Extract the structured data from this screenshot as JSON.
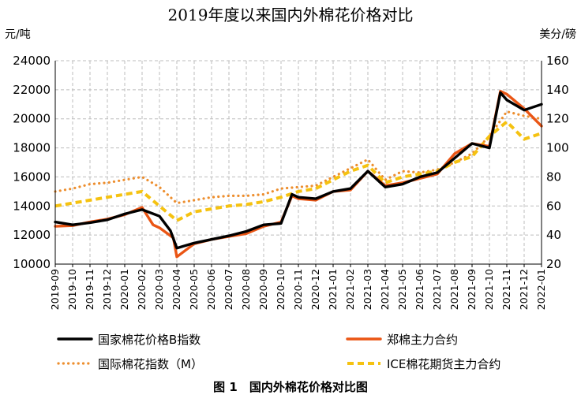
{
  "chart_data": {
    "type": "line",
    "title": "2019年度以来国内外棉花价格对比",
    "caption": "图 1　国内外棉花价格对比图",
    "ylabel_left": "元/吨",
    "ylabel_right": "美分/磅",
    "ylim_left": [
      10000,
      24000
    ],
    "ylim_right": [
      20,
      160
    ],
    "yticks_left": [
      "24000",
      "22000",
      "20000",
      "18000",
      "16000",
      "14000",
      "12000",
      "10000"
    ],
    "yticks_right": [
      "160",
      "140",
      "120",
      "100",
      "80",
      "60",
      "40",
      "20"
    ],
    "x_ticks": [
      "2019-09",
      "2019-10",
      "2019-11",
      "2019-12",
      "2020-01",
      "2020-02",
      "2020-03",
      "2020-04",
      "2020-05",
      "2020-06",
      "2020-07",
      "2020-08",
      "2020-09",
      "2020-10",
      "2020-11",
      "2020-12",
      "2021-01",
      "2021-02",
      "2021-03",
      "2021-04",
      "2021-05",
      "2021-06",
      "2021-07",
      "2021-08",
      "2021-09",
      "2021-10",
      "2021-11",
      "2021-12",
      "2022-01"
    ],
    "grid": true,
    "legend_position": "bottom",
    "colors": {
      "cc_index": "#000000",
      "zce_main": "#ea5514",
      "intl_index": "#ed8e2e",
      "ice_main": "#f5c211",
      "grid": "#bdbdbd"
    },
    "series": [
      {
        "name": "国家棉花价格B指数",
        "axis": "left",
        "style": "solid-thick",
        "x": [
          "2019-09",
          "2019-10",
          "2019-11",
          "2019-12",
          "2020-01",
          "2020-02",
          "2020-03",
          "2020-03-20",
          "2020-04",
          "2020-05",
          "2020-06",
          "2020-07",
          "2020-08",
          "2020-09",
          "2020-10",
          "2020-10-20",
          "2020-11",
          "2020-12",
          "2021-01",
          "2021-02",
          "2021-03",
          "2021-04",
          "2021-05",
          "2021-06",
          "2021-07",
          "2021-08",
          "2021-09",
          "2021-10",
          "2021-10-20",
          "2021-11",
          "2021-12",
          "2021-12-31"
        ],
        "values": [
          12900,
          12700,
          12850,
          13050,
          13450,
          13750,
          13300,
          12300,
          11100,
          11450,
          11700,
          11950,
          12250,
          12700,
          12800,
          14800,
          14600,
          14500,
          15000,
          15200,
          16400,
          15300,
          15500,
          16000,
          16300,
          17300,
          18300,
          18000,
          21800,
          21300,
          20600,
          21000
        ]
      },
      {
        "name": "郑棉主力合约",
        "axis": "left",
        "style": "solid",
        "x": [
          "2019-09",
          "2019-10",
          "2019-11",
          "2019-12",
          "2020-01",
          "2020-02",
          "2020-02-20",
          "2020-03",
          "2020-03-25",
          "2020-04",
          "2020-05",
          "2020-06",
          "2020-07",
          "2020-08",
          "2020-09",
          "2020-10",
          "2020-10-20",
          "2020-11",
          "2020-12",
          "2021-01",
          "2021-02",
          "2021-03",
          "2021-04",
          "2021-05",
          "2021-06",
          "2021-07",
          "2021-08",
          "2021-09",
          "2021-10",
          "2021-10-20",
          "2021-11",
          "2021-12",
          "2021-12-31"
        ],
        "values": [
          12600,
          12650,
          12900,
          13100,
          13400,
          13900,
          12700,
          12500,
          11800,
          10500,
          11400,
          11700,
          11900,
          12100,
          12600,
          12900,
          14700,
          14500,
          14400,
          15000,
          15100,
          16400,
          15400,
          15600,
          15900,
          16200,
          17600,
          18300,
          18100,
          21900,
          21700,
          20700,
          19500
        ]
      },
      {
        "name": "国际棉花指数（M）",
        "axis": "right",
        "style": "dotted",
        "x": [
          "2019-09",
          "2019-10",
          "2019-11",
          "2019-12",
          "2020-01",
          "2020-02",
          "2020-03",
          "2020-04",
          "2020-05",
          "2020-06",
          "2020-07",
          "2020-08",
          "2020-09",
          "2020-10",
          "2020-11",
          "2020-12",
          "2021-01",
          "2021-02",
          "2021-03",
          "2021-04",
          "2021-05",
          "2021-06",
          "2021-07",
          "2021-08",
          "2021-09",
          "2021-10",
          "2021-11",
          "2021-12",
          "2021-12-31"
        ],
        "values": [
          70,
          72,
          75,
          76,
          78,
          80,
          73,
          62,
          64,
          66,
          67,
          67,
          68,
          72,
          73,
          74,
          80,
          86,
          92,
          78,
          84,
          83,
          85,
          90,
          96,
          108,
          125,
          122,
          120
        ]
      },
      {
        "name": "ICE棉花期货主力合约",
        "axis": "right",
        "style": "dashed",
        "x": [
          "2019-09",
          "2019-10",
          "2019-11",
          "2019-12",
          "2020-01",
          "2020-02",
          "2020-03",
          "2020-04",
          "2020-05",
          "2020-06",
          "2020-07",
          "2020-08",
          "2020-09",
          "2020-10",
          "2020-11",
          "2020-12",
          "2021-01",
          "2021-02",
          "2021-03",
          "2021-04",
          "2021-05",
          "2021-06",
          "2021-07",
          "2021-08",
          "2021-09",
          "2021-10",
          "2021-11",
          "2021-12",
          "2021-12-31"
        ],
        "values": [
          60,
          62,
          64,
          66,
          68,
          70,
          60,
          50,
          56,
          58,
          60,
          61,
          63,
          66,
          70,
          72,
          78,
          84,
          88,
          76,
          80,
          82,
          84,
          90,
          94,
          108,
          118,
          106,
          110
        ]
      }
    ]
  }
}
